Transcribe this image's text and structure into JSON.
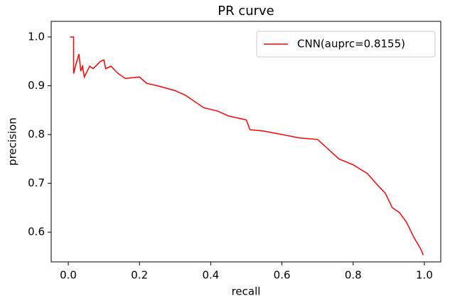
{
  "chart_data": {
    "type": "line",
    "title": "PR curve",
    "x_label": "recall",
    "y_label": "precision",
    "xlim": [
      -0.048,
      1.046
    ],
    "ylim": [
      0.539,
      1.032
    ],
    "xticks": [
      {
        "value": 0,
        "label": "0.0"
      },
      0.2,
      0.4,
      0.6,
      0.8,
      {
        "value": 1,
        "label": "1.0"
      }
    ],
    "yticks": [
      0.6,
      0.7,
      0.8,
      0.9,
      {
        "value": 1,
        "label": "1.0"
      }
    ],
    "legend": "upper right",
    "x": [
      0.005,
      0.015,
      0.015,
      0.02,
      0.03,
      0.035,
      0.04,
      0.045,
      0.06,
      0.07,
      0.09,
      0.1,
      0.105,
      0.12,
      0.14,
      0.16,
      0.2,
      0.22,
      0.25,
      0.3,
      0.33,
      0.35,
      0.38,
      0.42,
      0.45,
      0.5,
      0.51,
      0.55,
      0.6,
      0.65,
      0.7,
      0.73,
      0.76,
      0.8,
      0.84,
      0.87,
      0.89,
      0.91,
      0.93,
      0.95,
      0.97,
      0.99,
      0.997
    ],
    "series": [
      {
        "name": "CNN(auprc=0.8155)",
        "color": "#ff0000",
        "values": [
          1.0,
          1.0,
          0.925,
          0.94,
          0.965,
          0.93,
          0.94,
          0.918,
          0.94,
          0.935,
          0.95,
          0.953,
          0.935,
          0.94,
          0.925,
          0.915,
          0.918,
          0.905,
          0.9,
          0.89,
          0.88,
          0.87,
          0.855,
          0.848,
          0.838,
          0.83,
          0.81,
          0.807,
          0.8,
          0.793,
          0.79,
          0.77,
          0.75,
          0.738,
          0.72,
          0.695,
          0.68,
          0.65,
          0.64,
          0.62,
          0.59,
          0.565,
          0.553
        ]
      }
    ]
  }
}
